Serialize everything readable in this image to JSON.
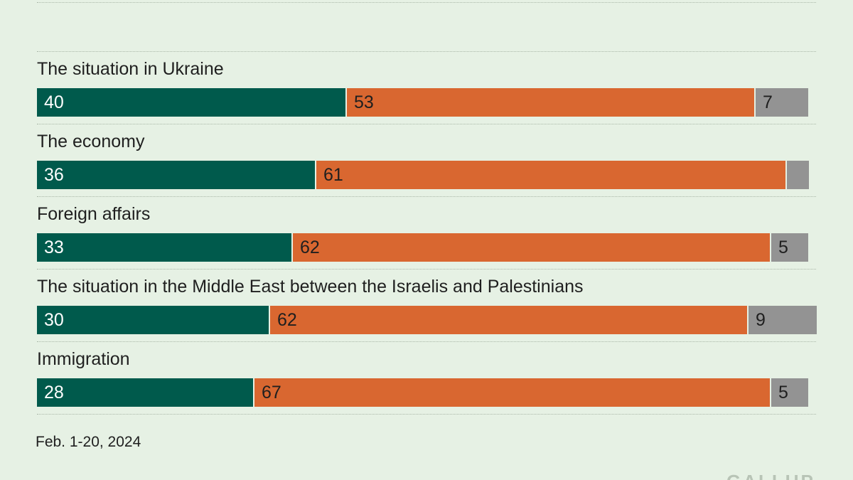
{
  "chart_data": {
    "type": "bar",
    "orientation": "horizontal",
    "stacked": true,
    "unit": "%",
    "categories": [
      "The situation in Ukraine",
      "The economy",
      "Foreign affairs",
      "The situation in the Middle East between the Israelis and Palestinians",
      "Immigration"
    ],
    "series": [
      {
        "values": [
          40,
          36,
          33,
          30,
          28
        ],
        "color": "#005a4c",
        "labels": [
          "40",
          "36",
          "33",
          "30",
          "28"
        ]
      },
      {
        "values": [
          53,
          61,
          62,
          62,
          67
        ],
        "color": "#d96730",
        "labels": [
          "53",
          "61",
          "62",
          "62",
          "67"
        ]
      },
      {
        "values": [
          7,
          3,
          5,
          9,
          5
        ],
        "color": "#939393",
        "labels": [
          "7",
          "",
          "5",
          "9",
          "5"
        ]
      }
    ],
    "xlim": [
      0,
      100
    ],
    "grid": false
  },
  "footnote": "Feb. 1-20, 2024",
  "logo_text": "GALLUP"
}
